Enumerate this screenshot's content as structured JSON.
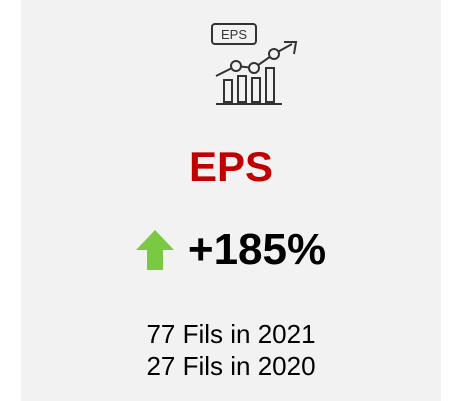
{
  "icon_label": "EPS",
  "title": "EPS",
  "change": "+185%",
  "lines": [
    "77 Fils in 2021",
    "27 Fils in 2020"
  ]
}
